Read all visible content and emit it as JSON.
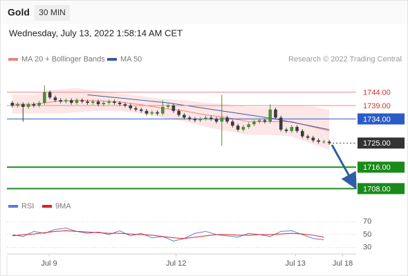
{
  "header": {
    "symbol": "Gold",
    "interval": "30 MIN",
    "datetime": "Wednesday, July 13, 2022 1:58:14 AM CET"
  },
  "attribution": "Research © 2022 Trading Central",
  "chart_data": [
    {
      "type": "candlestick",
      "open": [
        1740,
        1739,
        1739.5,
        1738.5,
        1739.5,
        1739,
        1740,
        1744,
        1742,
        1741,
        1740.5,
        1741,
        1740,
        1741,
        1740.5,
        1740,
        1740.5,
        1739.5,
        1740,
        1740.5,
        1740,
        1739.5,
        1739,
        1738,
        1737.5,
        1737,
        1736,
        1736.5,
        1736,
        1738.5,
        1739,
        1737,
        1735.5,
        1734.5,
        1734,
        1733.5,
        1734,
        1734.5,
        1734,
        1733,
        1734.5,
        1733,
        1731.5,
        1730,
        1731,
        1732,
        1733,
        1733.5,
        1733,
        1737.5,
        1734.5,
        1730,
        1729.5,
        1731,
        1729.5,
        1727.5,
        1727,
        1726,
        1725.5,
        1725.5
      ],
      "high": [
        1740.7,
        1740.2,
        1740.2,
        1740.2,
        1740.2,
        1740.7,
        1746.5,
        1744.7,
        1742.7,
        1741.7,
        1741.7,
        1741.7,
        1741.7,
        1741.7,
        1741.2,
        1741.2,
        1741.2,
        1740.7,
        1741.2,
        1741.2,
        1740.7,
        1740.2,
        1739.7,
        1738.7,
        1738.2,
        1737.7,
        1737.2,
        1737.2,
        1741,
        1739.7,
        1739.7,
        1737.7,
        1736.2,
        1735.2,
        1734.7,
        1734.7,
        1735.2,
        1735.2,
        1734.7,
        1743,
        1735.2,
        1733.7,
        1732.2,
        1731.7,
        1732.7,
        1733.7,
        1734.2,
        1734.2,
        1739.5,
        1738.2,
        1735.2,
        1730.7,
        1731.7,
        1731.7,
        1730.2,
        1728.2,
        1727.7,
        1726.7,
        1726.2,
        1726.2
      ],
      "low": [
        1738.3,
        1738.3,
        1733,
        1737.8,
        1738.3,
        1738.3,
        1739.3,
        1741.3,
        1740.3,
        1739.8,
        1739.8,
        1739.3,
        1739.3,
        1739.8,
        1739.3,
        1739.3,
        1738.8,
        1738.8,
        1739.3,
        1739.3,
        1738.8,
        1738.3,
        1737.3,
        1736.8,
        1736.3,
        1735.3,
        1735.3,
        1735.3,
        1735.3,
        1737.8,
        1736.3,
        1734.8,
        1733.8,
        1733.3,
        1732.8,
        1732.8,
        1733.3,
        1733.3,
        1732.3,
        1724,
        1732.3,
        1730.8,
        1729.3,
        1729.3,
        1730.3,
        1731.3,
        1732.3,
        1732.3,
        1732.3,
        1733.8,
        1729.3,
        1728.8,
        1728.8,
        1728.8,
        1726.8,
        1726.3,
        1725.3,
        1724.8,
        1724.8,
        1724.3
      ],
      "close": [
        1739,
        1739.5,
        1738.5,
        1739.5,
        1739,
        1740,
        1744,
        1742,
        1741,
        1740.5,
        1741,
        1740,
        1741,
        1740.5,
        1740,
        1740.5,
        1739.5,
        1740,
        1740.5,
        1740,
        1739.5,
        1739,
        1738,
        1737.5,
        1737,
        1736,
        1736.5,
        1736,
        1738.5,
        1739,
        1737,
        1735.5,
        1734.5,
        1734,
        1733.5,
        1734,
        1734.5,
        1734,
        1733,
        1734.5,
        1733,
        1731.5,
        1730,
        1731,
        1732,
        1733,
        1733.5,
        1733,
        1737.5,
        1734.5,
        1730,
        1729.5,
        1731,
        1729.5,
        1727.5,
        1727,
        1726,
        1725.5,
        1725.5,
        1725
      ],
      "up_color": "#4e8a3a",
      "down_color": "#3b3b3b",
      "xlim": [
        -1,
        64
      ],
      "ylim": [
        1705,
        1748
      ],
      "xticks": [
        {
          "value": 6.85,
          "label": "Jul 9"
        },
        {
          "value": 30.5,
          "label": "Jul 12"
        },
        {
          "value": 52.7,
          "label": "Jul 13"
        },
        {
          "value": 61.5,
          "label": "Jul 18"
        }
      ],
      "overlays": [
        {
          "name": "MA 20 + Bollinger Bands",
          "color": "#f08080",
          "band_color": "#fde0e0",
          "x": [
            0,
            4,
            8,
            12,
            16,
            20,
            24,
            28,
            32,
            36,
            40,
            44,
            48,
            52,
            56,
            59
          ],
          "values": [
            1739.5,
            1739.5,
            1740.5,
            1741,
            1740.8,
            1740.3,
            1739.3,
            1738,
            1737,
            1735.5,
            1734.5,
            1733,
            1733,
            1733,
            1731,
            1729.5
          ],
          "upper": [
            1743,
            1743,
            1745,
            1745.5,
            1744.5,
            1743.5,
            1742.5,
            1741.5,
            1741,
            1740,
            1739.5,
            1738.5,
            1738.5,
            1739,
            1738.5,
            1737.5
          ],
          "lower": [
            1736,
            1736,
            1736,
            1736.5,
            1737,
            1737,
            1736,
            1734.5,
            1733,
            1731,
            1729.5,
            1728,
            1728,
            1727.5,
            1724.5,
            1722.5
          ]
        },
        {
          "name": "MA 50",
          "color": "#3a5a9a",
          "x": [
            14,
            19,
            24,
            29,
            34,
            39,
            44,
            49,
            54,
            59
          ],
          "values": [
            1743,
            1742,
            1741,
            1740,
            1738.5,
            1737,
            1735.5,
            1734,
            1732,
            1730
          ]
        }
      ],
      "levels": [
        {
          "value": 1744,
          "label": "1744.00",
          "color": "#f08a8a",
          "text_color": "#d03030",
          "box": false,
          "dotted": false,
          "width": 1
        },
        {
          "value": 1739,
          "label": "1739.00",
          "color": "#f08a8a",
          "text_color": "#d03030",
          "box": false,
          "dotted": false,
          "width": 1
        },
        {
          "value": 1734,
          "label": "1734.00",
          "color": "#2a5cc8",
          "text_color": "#ffffff",
          "box": true,
          "dotted": false,
          "width": 1
        },
        {
          "value": 1725,
          "label": "1725.00",
          "color": "#333333",
          "text_color": "#ffffff",
          "box": true,
          "dotted": true,
          "width": 1
        },
        {
          "value": 1716,
          "label": "1716.00",
          "color": "#1a8a1a",
          "text_color": "#ffffff",
          "box": true,
          "dotted": false,
          "width": 2
        },
        {
          "value": 1708,
          "label": "1708.00",
          "color": "#1a8a1a",
          "text_color": "#ffffff",
          "box": true,
          "dotted": false,
          "width": 2
        }
      ]
    },
    {
      "type": "line",
      "xlim": [
        -1,
        64
      ],
      "ylim": [
        20,
        80
      ],
      "yticks": [
        30,
        50,
        70
      ],
      "series": [
        {
          "name": "RSI",
          "color": "#5b7bd5",
          "x": [
            0,
            2,
            4,
            6,
            8,
            10,
            12,
            14,
            16,
            18,
            20,
            22,
            24,
            26,
            28,
            30,
            32,
            34,
            36,
            38,
            40,
            42,
            44,
            46,
            48,
            50,
            52,
            54,
            56,
            58
          ],
          "values": [
            50,
            47,
            55,
            52,
            58,
            60,
            55,
            52,
            54,
            50,
            56,
            48,
            52,
            45,
            47,
            40,
            44,
            52,
            55,
            50,
            48,
            46,
            52,
            50,
            47,
            55,
            56,
            50,
            44,
            42
          ]
        },
        {
          "name": "9MA",
          "color": "#e0201b",
          "x": [
            0,
            2,
            4,
            6,
            8,
            10,
            12,
            14,
            16,
            18,
            20,
            22,
            24,
            26,
            28,
            30,
            32,
            34,
            36,
            38,
            40,
            42,
            44,
            46,
            48,
            50,
            52,
            54,
            56,
            58
          ],
          "values": [
            48,
            50,
            51,
            53,
            55,
            56,
            55,
            54,
            53,
            52,
            52,
            51,
            50,
            49,
            47,
            45,
            44,
            46,
            48,
            50,
            50,
            49,
            49,
            50,
            50,
            51,
            52,
            51,
            49,
            46
          ]
        }
      ]
    }
  ]
}
